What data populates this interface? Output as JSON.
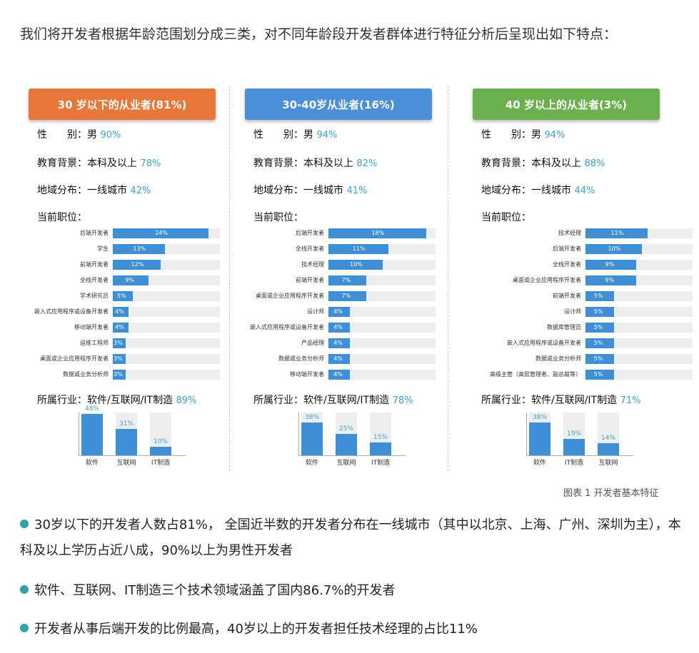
{
  "intro": "我们将开发者根据年龄范围划分成三类，对不同年龄段开发者群体进行特征分析后呈现出如下特点：",
  "caption": "图表 1 开发者基本特征",
  "groups": [
    {
      "title": "30 岁以下的从业者(81%)",
      "color": "#e8773a",
      "gender": {
        "label": "性　　别：男",
        "pct": "90%"
      },
      "education": {
        "label": "教育背景：本科及以上",
        "pct": "78%"
      },
      "region": {
        "label": "地域分布：一线城市",
        "pct": "42%"
      },
      "positions_label": "当前职位：",
      "positions": [
        {
          "name": "后端开发者",
          "value": 24,
          "label": "24%"
        },
        {
          "name": "学生",
          "value": 13,
          "label": "13%"
        },
        {
          "name": "前端开发者",
          "value": 12,
          "label": "12%"
        },
        {
          "name": "全栈开发者",
          "value": 9,
          "label": "9%"
        },
        {
          "name": "学术研究员",
          "value": 5,
          "label": "5%"
        },
        {
          "name": "嵌入式应用程序或设备开发者",
          "value": 4,
          "label": "4%"
        },
        {
          "name": "移动端开发者",
          "value": 4,
          "label": "4%"
        },
        {
          "name": "运维工程师",
          "value": 3,
          "label": "3%"
        },
        {
          "name": "桌面或企业应用程序开发者",
          "value": 3,
          "label": "3%"
        },
        {
          "name": "数据或业务分析师",
          "value": 3,
          "label": "3%"
        }
      ],
      "industry": {
        "label": "所属行业：软件/互联网/IT制造",
        "pct": "89%"
      },
      "industry_bars": [
        {
          "name": "软件",
          "value": 48,
          "label": "48%"
        },
        {
          "name": "互联网",
          "value": 31,
          "label": "31%"
        },
        {
          "name": "IT制造",
          "value": 10,
          "label": "10%"
        }
      ]
    },
    {
      "title": "30-40岁从业者(16%)",
      "color": "#4a8fd8",
      "gender": {
        "label": "性　　别：男",
        "pct": "94%"
      },
      "education": {
        "label": "教育背景：本科及以上",
        "pct": "82%"
      },
      "region": {
        "label": "地域分布：一线城市",
        "pct": "41%"
      },
      "positions_label": "当前职位：",
      "positions": [
        {
          "name": "后端开发者",
          "value": 18,
          "label": "18%"
        },
        {
          "name": "全栈开发者",
          "value": 11,
          "label": "11%"
        },
        {
          "name": "技术经理",
          "value": 10,
          "label": "10%"
        },
        {
          "name": "前端开发者",
          "value": 7,
          "label": "7%"
        },
        {
          "name": "桌面或企业应用程序开发者",
          "value": 7,
          "label": "7%"
        },
        {
          "name": "设计师",
          "value": 4,
          "label": "4%"
        },
        {
          "name": "嵌入式应用程序或设备开发者",
          "value": 4,
          "label": "4%"
        },
        {
          "name": "产品经理",
          "value": 4,
          "label": "4%"
        },
        {
          "name": "数据或业务分析师",
          "value": 4,
          "label": "4%"
        },
        {
          "name": "移动端开发者",
          "value": 4,
          "label": "4%"
        }
      ],
      "industry": {
        "label": "所属行业：软件/互联网/IT制造",
        "pct": "78%"
      },
      "industry_bars": [
        {
          "name": "软件",
          "value": 38,
          "label": "38%"
        },
        {
          "name": "互联网",
          "value": 25,
          "label": "25%"
        },
        {
          "name": "IT制造",
          "value": 15,
          "label": "15%"
        }
      ]
    },
    {
      "title": "40 岁以上的从业者(3%)",
      "color": "#6ab04c",
      "gender": {
        "label": "性　　别：男",
        "pct": "94%"
      },
      "education": {
        "label": "教育背景：本科及以上",
        "pct": "88%"
      },
      "region": {
        "label": "地域分布：一线城市",
        "pct": "44%"
      },
      "positions_label": "当前职位：",
      "positions": [
        {
          "name": "技术经理",
          "value": 11,
          "label": "11%"
        },
        {
          "name": "后端开发者",
          "value": 10,
          "label": "10%"
        },
        {
          "name": "全栈开发者",
          "value": 9,
          "label": "9%"
        },
        {
          "name": "桌面或企业应用程序开发者",
          "value": 9,
          "label": "9%"
        },
        {
          "name": "前端开发者",
          "value": 5,
          "label": "5%"
        },
        {
          "name": "设计师",
          "value": 5,
          "label": "5%"
        },
        {
          "name": "数据库管理员",
          "value": 5,
          "label": "5%"
        },
        {
          "name": "嵌入式应用程序或设备开发者",
          "value": 5,
          "label": "5%"
        },
        {
          "name": "数据或业务分析师",
          "value": 5,
          "label": "5%"
        },
        {
          "name": "高级主管（高层管理者、副总裁等）",
          "value": 5,
          "label": "5%"
        }
      ],
      "industry": {
        "label": "所属行业：软件/互联网/IT制造",
        "pct": "71%"
      },
      "industry_bars": [
        {
          "name": "软件",
          "value": 38,
          "label": "38%"
        },
        {
          "name": "IT制造",
          "value": 19,
          "label": "19%"
        },
        {
          "name": "互联网",
          "value": 14,
          "label": "14%"
        }
      ]
    }
  ],
  "bullets": [
    "30岁以下的开发者人数占81%， 全国近半数的开发者分布在一线城市（其中以北京、上海、广州、深圳为主），本科及以上学历占近八成，90%以上为男性开发者",
    "软件、互联网、IT制造三个技术领域涵盖了国内86.7%的开发者",
    "开发者从事后端开发的比例最高，40岁以上的开发者担任技术经理的占比11%"
  ],
  "bullet_color": "#2ea3a6"
}
